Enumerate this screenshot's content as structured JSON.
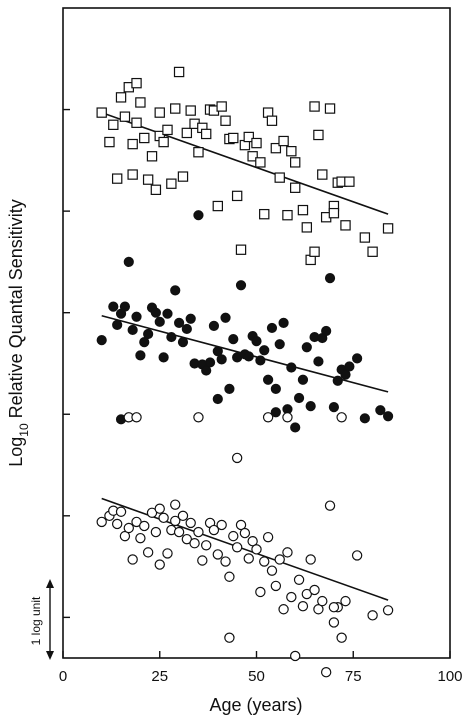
{
  "chart_data": {
    "type": "scatter",
    "title": "",
    "xlabel": "Age  (years)",
    "ylabel_main": "Log",
    "ylabel_sub": "10",
    "ylabel_rest": " Relative Quantal Sensitivity",
    "xlim": [
      0,
      100
    ],
    "xticks": [
      "0",
      "25",
      "50",
      "75",
      "100"
    ],
    "ylim": [
      -0.4,
      6.0
    ],
    "yticks": [
      0,
      1,
      2,
      3,
      4,
      5
    ],
    "grid": false,
    "scale_bar": {
      "label": "1 log unit",
      "from": -0.4,
      "to": 0.6
    },
    "series": [
      {
        "marker": "open-square",
        "fit": {
          "x": [
            10,
            84
          ],
          "y": [
            4.97,
            3.97
          ]
        },
        "points": [
          [
            10,
            4.97
          ],
          [
            12,
            4.68
          ],
          [
            13,
            4.85
          ],
          [
            14,
            4.32
          ],
          [
            15,
            5.12
          ],
          [
            16,
            4.93
          ],
          [
            17,
            5.22
          ],
          [
            18,
            4.36
          ],
          [
            18,
            4.66
          ],
          [
            19,
            5.26
          ],
          [
            19,
            4.87
          ],
          [
            20,
            5.07
          ],
          [
            21,
            4.72
          ],
          [
            22,
            4.31
          ],
          [
            23,
            4.54
          ],
          [
            24,
            4.21
          ],
          [
            25,
            4.97
          ],
          [
            25,
            4.74
          ],
          [
            26,
            4.68
          ],
          [
            27,
            4.8
          ],
          [
            28,
            4.27
          ],
          [
            29,
            5.01
          ],
          [
            30,
            5.37
          ],
          [
            31,
            4.34
          ],
          [
            32,
            4.77
          ],
          [
            33,
            4.99
          ],
          [
            34,
            4.86
          ],
          [
            35,
            4.58
          ],
          [
            36,
            4.82
          ],
          [
            37,
            4.76
          ],
          [
            38,
            5.0
          ],
          [
            39,
            4.99
          ],
          [
            40,
            4.05
          ],
          [
            41,
            5.03
          ],
          [
            42,
            4.89
          ],
          [
            43,
            4.71
          ],
          [
            44,
            4.72
          ],
          [
            45,
            4.15
          ],
          [
            46,
            3.62
          ],
          [
            47,
            4.65
          ],
          [
            48,
            4.73
          ],
          [
            49,
            4.54
          ],
          [
            50,
            4.67
          ],
          [
            51,
            4.48
          ],
          [
            52,
            3.97
          ],
          [
            53,
            4.97
          ],
          [
            54,
            4.89
          ],
          [
            55,
            4.62
          ],
          [
            56,
            4.33
          ],
          [
            57,
            4.69
          ],
          [
            58,
            3.96
          ],
          [
            59,
            4.59
          ],
          [
            60,
            4.48
          ],
          [
            62,
            4.01
          ],
          [
            63,
            3.84
          ],
          [
            64,
            3.52
          ],
          [
            65,
            3.6
          ],
          [
            65,
            5.03
          ],
          [
            66,
            4.75
          ],
          [
            67,
            4.36
          ],
          [
            68,
            3.94
          ],
          [
            69,
            5.01
          ],
          [
            70,
            4.05
          ],
          [
            71,
            4.28
          ],
          [
            72,
            4.29
          ],
          [
            73,
            3.86
          ],
          [
            74,
            4.29
          ],
          [
            78,
            3.74
          ],
          [
            80,
            3.6
          ],
          [
            84,
            3.83
          ],
          [
            70,
            3.98
          ],
          [
            60,
            4.23
          ]
        ]
      },
      {
        "marker": "filled-circle",
        "fit": {
          "x": [
            10,
            84
          ],
          "y": [
            2.97,
            2.22
          ]
        },
        "points": [
          [
            10,
            2.73
          ],
          [
            13,
            3.06
          ],
          [
            14,
            2.88
          ],
          [
            15,
            2.99
          ],
          [
            16,
            3.06
          ],
          [
            17,
            3.5
          ],
          [
            18,
            2.83
          ],
          [
            19,
            2.96
          ],
          [
            20,
            2.58
          ],
          [
            21,
            2.71
          ],
          [
            22,
            2.79
          ],
          [
            23,
            3.05
          ],
          [
            24,
            3.0
          ],
          [
            25,
            2.91
          ],
          [
            26,
            2.56
          ],
          [
            27,
            2.99
          ],
          [
            28,
            2.76
          ],
          [
            29,
            3.22
          ],
          [
            30,
            2.9
          ],
          [
            31,
            2.71
          ],
          [
            32,
            2.84
          ],
          [
            33,
            2.94
          ],
          [
            34,
            2.5
          ],
          [
            35,
            3.96
          ],
          [
            36,
            2.49
          ],
          [
            37,
            2.43
          ],
          [
            38,
            2.51
          ],
          [
            39,
            2.87
          ],
          [
            40,
            2.62
          ],
          [
            41,
            2.54
          ],
          [
            42,
            2.95
          ],
          [
            43,
            2.25
          ],
          [
            44,
            2.74
          ],
          [
            45,
            2.56
          ],
          [
            46,
            3.27
          ],
          [
            47,
            2.59
          ],
          [
            48,
            2.57
          ],
          [
            49,
            2.77
          ],
          [
            50,
            2.72
          ],
          [
            51,
            2.53
          ],
          [
            52,
            2.63
          ],
          [
            53,
            2.34
          ],
          [
            54,
            2.85
          ],
          [
            55,
            2.25
          ],
          [
            56,
            2.69
          ],
          [
            57,
            2.9
          ],
          [
            58,
            2.05
          ],
          [
            59,
            2.46
          ],
          [
            60,
            1.87
          ],
          [
            61,
            2.16
          ],
          [
            62,
            2.34
          ],
          [
            63,
            2.66
          ],
          [
            64,
            2.08
          ],
          [
            65,
            2.76
          ],
          [
            66,
            2.52
          ],
          [
            67,
            2.75
          ],
          [
            68,
            2.82
          ],
          [
            69,
            3.34
          ],
          [
            70,
            2.07
          ],
          [
            71,
            2.33
          ],
          [
            72,
            2.44
          ],
          [
            73,
            2.39
          ],
          [
            74,
            2.47
          ],
          [
            76,
            2.55
          ],
          [
            78,
            1.96
          ],
          [
            82,
            2.04
          ],
          [
            84,
            1.98
          ],
          [
            15,
            1.95
          ],
          [
            40,
            2.15
          ],
          [
            55,
            2.02
          ]
        ]
      },
      {
        "marker": "open-circle",
        "fit": {
          "x": [
            10,
            84
          ],
          "y": [
            1.17,
            0.17
          ]
        },
        "points": [
          [
            10,
            0.94
          ],
          [
            12,
            1.0
          ],
          [
            13,
            1.05
          ],
          [
            14,
            0.92
          ],
          [
            15,
            1.04
          ],
          [
            16,
            0.8
          ],
          [
            17,
            0.88
          ],
          [
            18,
            0.57
          ],
          [
            19,
            0.94
          ],
          [
            20,
            0.78
          ],
          [
            21,
            0.9
          ],
          [
            22,
            0.64
          ],
          [
            23,
            1.03
          ],
          [
            24,
            0.84
          ],
          [
            25,
            0.52
          ],
          [
            26,
            0.98
          ],
          [
            27,
            0.63
          ],
          [
            28,
            0.86
          ],
          [
            29,
            0.95
          ],
          [
            30,
            0.84
          ],
          [
            31,
            1.0
          ],
          [
            32,
            0.77
          ],
          [
            33,
            0.93
          ],
          [
            34,
            0.73
          ],
          [
            35,
            0.84
          ],
          [
            36,
            0.56
          ],
          [
            37,
            0.71
          ],
          [
            38,
            0.93
          ],
          [
            39,
            0.86
          ],
          [
            40,
            0.62
          ],
          [
            41,
            0.91
          ],
          [
            42,
            0.55
          ],
          [
            43,
            0.4
          ],
          [
            44,
            0.8
          ],
          [
            45,
            0.69
          ],
          [
            46,
            0.91
          ],
          [
            47,
            0.83
          ],
          [
            48,
            0.58
          ],
          [
            49,
            0.75
          ],
          [
            50,
            0.67
          ],
          [
            51,
            0.25
          ],
          [
            52,
            0.55
          ],
          [
            53,
            0.79
          ],
          [
            54,
            0.46
          ],
          [
            55,
            0.31
          ],
          [
            56,
            0.57
          ],
          [
            57,
            0.08
          ],
          [
            58,
            0.64
          ],
          [
            59,
            0.2
          ],
          [
            60,
            -0.38
          ],
          [
            61,
            0.37
          ],
          [
            62,
            0.11
          ],
          [
            63,
            0.23
          ],
          [
            64,
            0.57
          ],
          [
            65,
            0.27
          ],
          [
            66,
            0.08
          ],
          [
            67,
            0.16
          ],
          [
            68,
            -0.54
          ],
          [
            69,
            1.1
          ],
          [
            70,
            -0.05
          ],
          [
            71,
            0.1
          ],
          [
            72,
            -0.2
          ],
          [
            73,
            0.16
          ],
          [
            76,
            0.61
          ],
          [
            80,
            0.02
          ],
          [
            84,
            0.07
          ],
          [
            25,
            1.07
          ],
          [
            29,
            1.11
          ],
          [
            43,
            -0.2
          ],
          [
            70,
            0.1
          ]
        ]
      },
      {
        "marker": "open-circle",
        "fit": null,
        "points": [
          [
            17,
            1.97
          ],
          [
            19,
            1.97
          ],
          [
            35,
            1.97
          ],
          [
            53,
            1.97
          ],
          [
            58,
            1.97
          ],
          [
            72,
            1.97
          ],
          [
            45,
            1.57
          ]
        ]
      }
    ]
  }
}
